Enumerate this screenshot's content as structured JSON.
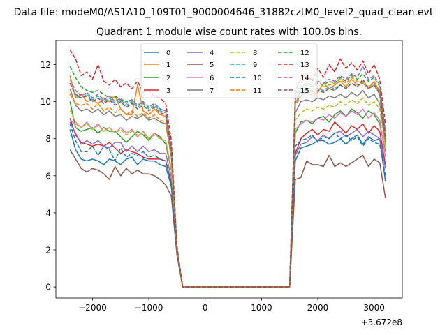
{
  "figure": {
    "suptitle": "Data file: modeM0/AS1A10_109T01_9000004646_31882cztM0_level2_quad_clean.evt",
    "title": "Quadrant 1 module wise count rates with 100.0s bins.",
    "offset_label": "+3.672e8"
  },
  "chart_data": {
    "type": "line",
    "title": "Quadrant 1 module wise count rates with 100.0s bins.",
    "xlabel": "",
    "ylabel": "",
    "x_offset": 367200000,
    "xlim": [
      -2650,
      3500
    ],
    "ylim": [
      -0.6,
      13.3
    ],
    "xticks": [
      -2000,
      -1000,
      0,
      1000,
      2000,
      3000
    ],
    "xtick_labels": [
      "−2000",
      "−1000",
      "0",
      "1000",
      "2000",
      "3000"
    ],
    "yticks": [
      0,
      2,
      4,
      6,
      8,
      10,
      12
    ],
    "ytick_labels": [
      "0",
      "2",
      "4",
      "6",
      "8",
      "10",
      "12"
    ],
    "grid": false,
    "legend_position": "top-center",
    "legend_columns": 4,
    "x": [
      -2400,
      -2300,
      -2200,
      -2100,
      -2000,
      -1900,
      -1800,
      -1700,
      -1600,
      -1500,
      -1400,
      -1300,
      -1200,
      -1100,
      -1000,
      -900,
      -800,
      -700,
      -600,
      -500,
      -400,
      -300,
      -200,
      -100,
      0,
      100,
      200,
      300,
      400,
      500,
      600,
      700,
      800,
      900,
      1000,
      1100,
      1200,
      1300,
      1400,
      1500,
      1600,
      1700,
      1800,
      1900,
      2000,
      2100,
      2200,
      2300,
      2400,
      2500,
      2600,
      2700,
      2800,
      2900,
      3000,
      3100,
      3200
    ],
    "series": [
      {
        "name": "0",
        "color": "#1f77b4",
        "dash": "solid",
        "values": [
          8.5,
          7.4,
          6.9,
          6.8,
          6.9,
          6.8,
          6.6,
          6.9,
          6.8,
          6.6,
          6.9,
          7.0,
          6.6,
          6.9,
          6.8,
          6.8,
          6.6,
          6.5,
          5.4,
          1.8,
          0,
          0,
          0,
          0,
          0,
          0,
          0,
          0,
          0,
          0,
          0,
          0,
          0,
          0,
          0,
          0,
          0,
          0,
          0,
          0,
          6.8,
          7.5,
          7.6,
          7.7,
          7.9,
          7.9,
          7.7,
          7.8,
          8.0,
          7.7,
          8.0,
          8.2,
          7.7,
          8.1,
          7.9,
          8.0,
          5.7
        ]
      },
      {
        "name": "1",
        "color": "#ff7f0e",
        "dash": "solid",
        "values": [
          11.4,
          10.2,
          10.4,
          10.0,
          10.1,
          9.9,
          10.2,
          10.0,
          10.3,
          9.6,
          9.3,
          9.3,
          10.9,
          9.5,
          9.3,
          9.6,
          9.3,
          9.2,
          7.2,
          2.0,
          0,
          0,
          0,
          0,
          0,
          0,
          0,
          0,
          0,
          0,
          0,
          0,
          0,
          0,
          0,
          0,
          0,
          0,
          0,
          0,
          9.9,
          10.5,
          10.7,
          10.3,
          10.5,
          11.0,
          10.7,
          10.9,
          11.1,
          10.8,
          11.2,
          10.9,
          11.0,
          10.7,
          11.1,
          10.5,
          7.6
        ]
      },
      {
        "name": "2",
        "color": "#2ca02c",
        "dash": "solid",
        "values": [
          10.0,
          8.6,
          8.4,
          8.5,
          8.6,
          8.3,
          8.6,
          8.4,
          8.4,
          8.1,
          7.8,
          8.1,
          8.4,
          8.2,
          7.9,
          8.3,
          8.1,
          7.7,
          6.3,
          2.0,
          0,
          0,
          0,
          0,
          0,
          0,
          0,
          0,
          0,
          0,
          0,
          0,
          0,
          0,
          0,
          0,
          0,
          0,
          0,
          0,
          8.3,
          8.9,
          9.0,
          8.8,
          9.1,
          9.2,
          8.9,
          9.3,
          9.5,
          9.2,
          9.6,
          9.4,
          9.1,
          9.5,
          9.3,
          8.8,
          7.3
        ]
      },
      {
        "name": "3",
        "color": "#d62728",
        "dash": "solid",
        "values": [
          9.1,
          8.2,
          7.8,
          7.7,
          7.6,
          7.7,
          7.6,
          7.8,
          7.5,
          7.2,
          7.4,
          7.3,
          7.2,
          7.0,
          6.9,
          6.9,
          6.9,
          6.8,
          5.6,
          1.9,
          0,
          0,
          0,
          0,
          0,
          0,
          0,
          0,
          0,
          0,
          0,
          0,
          0,
          0,
          0,
          0,
          0,
          0,
          0,
          0,
          7.2,
          8.0,
          8.3,
          8.5,
          8.2,
          8.5,
          8.4,
          8.9,
          8.6,
          8.3,
          8.7,
          8.5,
          8.8,
          8.3,
          8.7,
          8.4,
          6.6
        ]
      },
      {
        "name": "4",
        "color": "#9467bd",
        "dash": "solid",
        "values": [
          8.9,
          8.3,
          7.7,
          7.9,
          7.7,
          7.9,
          7.6,
          7.5,
          7.8,
          7.8,
          7.3,
          7.6,
          7.3,
          7.6,
          7.3,
          7.4,
          7.2,
          7.2,
          5.9,
          1.9,
          0,
          0,
          0,
          0,
          0,
          0,
          0,
          0,
          0,
          0,
          0,
          0,
          0,
          0,
          0,
          0,
          0,
          0,
          0,
          0,
          7.1,
          7.7,
          7.8,
          8.1,
          7.9,
          8.2,
          8.0,
          8.3,
          8.4,
          8.1,
          8.3,
          8.5,
          8.1,
          8.4,
          8.2,
          8.0,
          6.4
        ]
      },
      {
        "name": "5",
        "color": "#8c564b",
        "dash": "solid",
        "values": [
          7.4,
          6.9,
          6.4,
          6.2,
          6.4,
          6.3,
          6.1,
          5.8,
          6.5,
          6.0,
          6.4,
          6.1,
          6.3,
          6.1,
          6.1,
          6.0,
          5.8,
          5.5,
          4.9,
          1.7,
          0,
          0,
          0,
          0,
          0,
          0,
          0,
          0,
          0,
          0,
          0,
          0,
          0,
          0,
          0,
          0,
          0,
          0,
          0,
          0,
          5.8,
          5.9,
          6.8,
          6.6,
          6.6,
          6.5,
          7.1,
          6.5,
          6.7,
          6.5,
          6.7,
          6.9,
          7.1,
          6.5,
          6.9,
          6.7,
          4.8
        ]
      },
      {
        "name": "6",
        "color": "#e377c2",
        "dash": "solid",
        "values": [
          9.0,
          8.8,
          8.6,
          8.9,
          8.5,
          8.8,
          8.4,
          8.6,
          8.3,
          8.6,
          8.3,
          8.5,
          8.1,
          8.4,
          8.0,
          8.3,
          8.0,
          7.9,
          6.4,
          2.0,
          0,
          0,
          0,
          0,
          0,
          0,
          0,
          0,
          0,
          0,
          0,
          0,
          0,
          0,
          0,
          0,
          0,
          0,
          0,
          0,
          8.5,
          8.8,
          9.0,
          8.9,
          9.1,
          9.0,
          9.3,
          9.1,
          9.4,
          9.2,
          9.5,
          9.3,
          9.6,
          9.1,
          9.4,
          9.0,
          7.0
        ]
      },
      {
        "name": "7",
        "color": "#7f7f7f",
        "dash": "solid",
        "values": [
          10.7,
          9.8,
          9.5,
          9.6,
          9.4,
          9.6,
          9.3,
          9.5,
          9.2,
          9.3,
          9.0,
          9.2,
          9.1,
          9.3,
          9.0,
          9.1,
          8.9,
          8.8,
          7.0,
          2.0,
          0,
          0,
          0,
          0,
          0,
          0,
          0,
          0,
          0,
          0,
          0,
          0,
          0,
          0,
          0,
          0,
          0,
          0,
          0,
          0,
          9.4,
          10.0,
          10.1,
          10.0,
          10.2,
          10.1,
          10.3,
          10.2,
          10.4,
          10.2,
          10.5,
          10.3,
          10.6,
          10.2,
          10.4,
          9.9,
          7.8
        ]
      },
      {
        "name": "8",
        "color": "#bcbd22",
        "dash": "dashed",
        "values": [
          9.5,
          8.9,
          8.6,
          8.8,
          8.5,
          8.7,
          8.4,
          8.6,
          8.3,
          8.5,
          8.2,
          8.4,
          8.2,
          8.3,
          8.0,
          8.2,
          8.0,
          7.9,
          6.3,
          2.0,
          0,
          0,
          0,
          0,
          0,
          0,
          0,
          0,
          0,
          0,
          0,
          0,
          0,
          0,
          0,
          0,
          0,
          0,
          0,
          0,
          9.0,
          9.4,
          9.6,
          9.5,
          9.7,
          9.6,
          9.8,
          9.7,
          10.0,
          9.8,
          10.1,
          9.9,
          10.2,
          9.8,
          10.0,
          9.6,
          7.4
        ]
      },
      {
        "name": "9",
        "color": "#17becf",
        "dash": "dashed",
        "values": [
          11.0,
          10.3,
          10.2,
          10.4,
          10.1,
          10.3,
          10.0,
          10.2,
          9.9,
          10.1,
          9.8,
          10.0,
          9.7,
          9.9,
          9.6,
          9.8,
          9.5,
          9.4,
          7.5,
          2.1,
          0,
          0,
          0,
          0,
          0,
          0,
          0,
          0,
          0,
          0,
          0,
          0,
          0,
          0,
          0,
          0,
          0,
          0,
          0,
          0,
          10.1,
          10.5,
          10.6,
          10.5,
          10.7,
          10.6,
          10.8,
          10.7,
          10.9,
          10.7,
          11.0,
          10.8,
          11.1,
          10.7,
          10.9,
          10.5,
          8.1
        ]
      },
      {
        "name": "10",
        "color": "#1f77b4",
        "dash": "dashed",
        "values": [
          8.8,
          7.9,
          7.3,
          7.3,
          7.6,
          7.1,
          7.6,
          7.4,
          6.8,
          7.5,
          7.0,
          7.2,
          7.1,
          7.3,
          7.0,
          7.1,
          6.9,
          6.8,
          5.6,
          1.9,
          0,
          0,
          0,
          0,
          0,
          0,
          0,
          0,
          0,
          0,
          0,
          0,
          0,
          0,
          0,
          0,
          0,
          0,
          0,
          0,
          7.6,
          7.9,
          8.0,
          8.2,
          7.8,
          8.1,
          8.0,
          8.3,
          8.0,
          8.2,
          7.9,
          8.1,
          7.6,
          8.0,
          7.8,
          7.7,
          6.0
        ]
      },
      {
        "name": "11",
        "color": "#ff7f0e",
        "dash": "dashed",
        "values": [
          10.4,
          9.9,
          9.8,
          9.9,
          9.6,
          9.9,
          9.5,
          9.7,
          9.4,
          9.6,
          9.3,
          9.5,
          9.2,
          9.4,
          9.1,
          9.3,
          9.0,
          8.9,
          7.2,
          2.0,
          0,
          0,
          0,
          0,
          0,
          0,
          0,
          0,
          0,
          0,
          0,
          0,
          0,
          0,
          0,
          0,
          0,
          0,
          0,
          0,
          9.8,
          10.3,
          10.5,
          10.4,
          10.6,
          10.8,
          10.9,
          11.0,
          11.2,
          11.0,
          11.3,
          11.1,
          11.0,
          10.8,
          11.0,
          10.6,
          7.9
        ]
      },
      {
        "name": "12",
        "color": "#2ca02c",
        "dash": "dashed",
        "values": [
          11.9,
          11.3,
          10.8,
          10.6,
          10.5,
          10.6,
          10.4,
          10.2,
          10.3,
          10.1,
          10.0,
          10.1,
          9.8,
          10.0,
          9.7,
          9.9,
          9.6,
          9.5,
          7.6,
          2.1,
          0,
          0,
          0,
          0,
          0,
          0,
          0,
          0,
          0,
          0,
          0,
          0,
          0,
          0,
          0,
          0,
          0,
          0,
          0,
          0,
          10.3,
          10.7,
          10.9,
          10.8,
          11.0,
          10.9,
          11.1,
          11.0,
          11.3,
          11.1,
          11.4,
          11.2,
          11.5,
          11.1,
          11.3,
          10.8,
          8.3
        ]
      },
      {
        "name": "13",
        "color": "#d62728",
        "dash": "dashed",
        "values": [
          12.8,
          12.3,
          11.4,
          11.6,
          11.2,
          12.0,
          11.1,
          10.9,
          11.2,
          10.8,
          11.0,
          10.7,
          11.1,
          10.5,
          10.6,
          10.3,
          10.2,
          9.9,
          7.9,
          2.2,
          0,
          0,
          0,
          0,
          0,
          0,
          0,
          0,
          0,
          0,
          0,
          0,
          0,
          0,
          0,
          0,
          0,
          0,
          0,
          0,
          10.6,
          11.2,
          11.5,
          11.1,
          11.8,
          11.3,
          12.0,
          11.6,
          12.3,
          11.8,
          12.1,
          11.7,
          12.2,
          11.5,
          12.0,
          11.2,
          8.8
        ]
      },
      {
        "name": "14",
        "color": "#9467bd",
        "dash": "dashed",
        "values": [
          11.2,
          10.6,
          10.3,
          10.5,
          10.2,
          10.4,
          10.1,
          10.3,
          10.0,
          10.2,
          9.9,
          10.1,
          9.8,
          10.0,
          9.7,
          9.9,
          9.6,
          9.5,
          7.6,
          2.1,
          0,
          0,
          0,
          0,
          0,
          0,
          0,
          0,
          0,
          0,
          0,
          0,
          0,
          0,
          0,
          0,
          0,
          0,
          0,
          0,
          10.4,
          10.8,
          11.0,
          10.9,
          11.1,
          11.0,
          11.2,
          11.1,
          11.4,
          11.2,
          11.5,
          11.3,
          11.9,
          11.2,
          11.4,
          10.9,
          8.4
        ]
      },
      {
        "name": "15",
        "color": "#8c564b",
        "dash": "dashed",
        "values": [
          11.0,
          10.4,
          10.2,
          10.3,
          10.0,
          10.2,
          9.9,
          10.1,
          9.8,
          10.0,
          9.7,
          9.9,
          9.6,
          9.8,
          9.5,
          9.7,
          9.4,
          9.3,
          7.4,
          2.1,
          0,
          0,
          0,
          0,
          0,
          0,
          0,
          0,
          0,
          0,
          0,
          0,
          0,
          0,
          0,
          0,
          0,
          0,
          0,
          0,
          10.0,
          10.3,
          10.5,
          10.4,
          10.6,
          10.5,
          10.7,
          10.6,
          10.9,
          10.7,
          11.0,
          10.8,
          11.2,
          10.7,
          10.9,
          10.4,
          8.0
        ]
      }
    ]
  }
}
